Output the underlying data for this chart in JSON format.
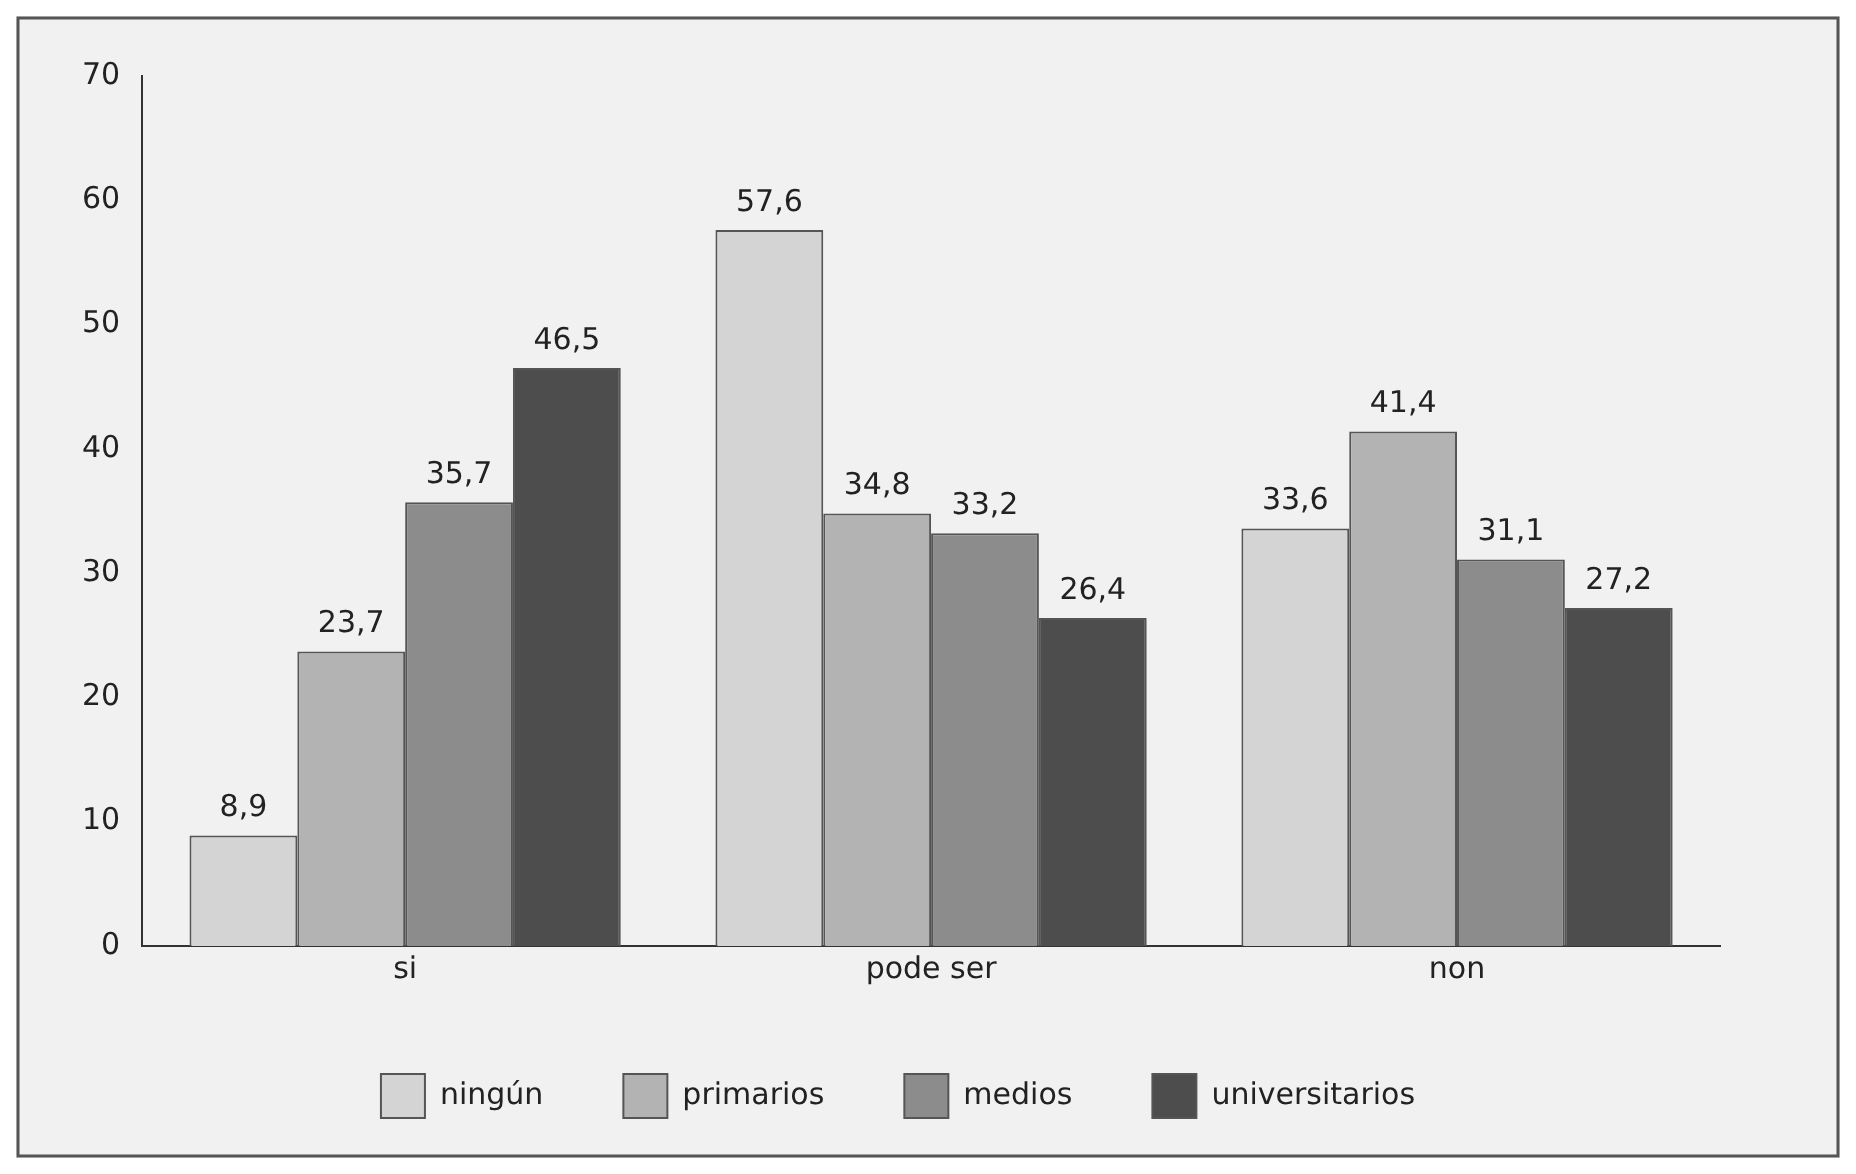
{
  "chart_data": {
    "type": "bar",
    "categories": [
      "si",
      "pode ser",
      "non"
    ],
    "series": [
      {
        "name": "ningún",
        "color": "#d4d4d4",
        "values": [
          8.9,
          57.6,
          33.6
        ],
        "value_labels": [
          "8,9",
          "57,6",
          "33,6"
        ]
      },
      {
        "name": "primarios",
        "color": "#b3b3b3",
        "values": [
          23.7,
          34.8,
          41.4
        ],
        "value_labels": [
          "23,7",
          "34,8",
          "41,4"
        ]
      },
      {
        "name": "medios",
        "color": "#8c8c8c",
        "values": [
          35.7,
          33.2,
          31.1
        ],
        "value_labels": [
          "35,7",
          "33,2",
          "31,1"
        ]
      },
      {
        "name": "universitarios",
        "color": "#4d4d4d",
        "values": [
          46.5,
          26.4,
          27.2
        ],
        "value_labels": [
          "46,5",
          "26,4",
          "27,2"
        ]
      }
    ],
    "ylim": [
      0,
      70
    ],
    "yticks": [
      0,
      10,
      20,
      30,
      40,
      50,
      60,
      70
    ],
    "grid": false,
    "legend": "bottom"
  }
}
